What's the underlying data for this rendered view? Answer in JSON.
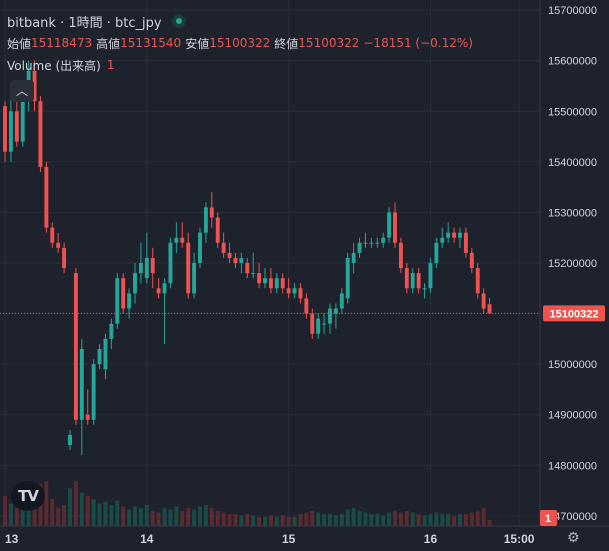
{
  "legend": {
    "title": "bitbank · 1時間 · btc_jpy",
    "open_label": "始値",
    "open": "15118473",
    "high_label": "高値",
    "high": "15131540",
    "low_label": "安値",
    "low": "15100322",
    "close_label": "終値",
    "close": "15100322",
    "change": "−18151 (−0.12%)",
    "volume_label": "Volume (出来高)",
    "volume_value": "1",
    "collapse_icon": "chevron-up-icon"
  },
  "brand": {
    "logo": "TV"
  },
  "icons": {
    "settings": "gear-icon"
  },
  "colors": {
    "up": "#26a69a",
    "down": "#ef5350",
    "background": "#1e222d",
    "grid": "#2a2e39"
  },
  "chart_data": {
    "type": "candlestick",
    "price_axis": {
      "ticks": [
        "15700000",
        "15600000",
        "15500000",
        "15400000",
        "15300000",
        "15200000",
        "15100000",
        "15000000",
        "14900000",
        "14800000",
        "14700000"
      ],
      "range": [
        14680000,
        15720000
      ],
      "last_price_label": "15100322",
      "last_price": 15100322,
      "volume_label": "1"
    },
    "time_axis": {
      "ticks": [
        {
          "label": "13",
          "index": 0
        },
        {
          "label": "14",
          "index": 24
        },
        {
          "label": "15",
          "index": 48
        },
        {
          "label": "16",
          "index": 72
        },
        {
          "label": "15:00",
          "index": 87
        }
      ],
      "range": [
        0,
        88
      ]
    },
    "grid": true,
    "candles": [
      [
        15510000,
        15520000,
        15400000,
        15420000,
        20
      ],
      [
        15420000,
        15530000,
        15400000,
        15500000,
        15
      ],
      [
        15500000,
        15530000,
        15430000,
        15440000,
        12
      ],
      [
        15440000,
        15560000,
        15430000,
        15530000,
        18
      ],
      [
        15530000,
        15600000,
        15500000,
        15580000,
        22
      ],
      [
        15580000,
        15600000,
        15500000,
        15520000,
        20
      ],
      [
        15520000,
        15530000,
        15380000,
        15390000,
        28
      ],
      [
        15390000,
        15400000,
        15260000,
        15270000,
        30
      ],
      [
        15270000,
        15280000,
        15230000,
        15240000,
        18
      ],
      [
        15240000,
        15260000,
        15220000,
        15230000,
        12
      ],
      [
        15230000,
        15240000,
        15180000,
        15190000,
        14
      ],
      [
        14840000,
        14870000,
        14830000,
        14860000,
        25
      ],
      [
        15180000,
        15190000,
        14880000,
        14890000,
        30
      ],
      [
        14890000,
        15050000,
        14820000,
        15030000,
        22
      ],
      [
        14900000,
        14950000,
        14880000,
        14890000,
        20
      ],
      [
        14890000,
        15010000,
        14880000,
        15000000,
        18
      ],
      [
        15000000,
        15040000,
        14990000,
        15030000,
        15
      ],
      [
        14990000,
        15060000,
        14970000,
        15050000,
        16
      ],
      [
        15050000,
        15090000,
        15030000,
        15080000,
        14
      ],
      [
        15080000,
        15180000,
        15070000,
        15170000,
        17
      ],
      [
        15170000,
        15180000,
        15100000,
        15110000,
        13
      ],
      [
        15110000,
        15150000,
        15090000,
        15140000,
        11
      ],
      [
        15140000,
        15200000,
        15120000,
        15180000,
        13
      ],
      [
        15180000,
        15240000,
        15160000,
        15200000,
        12
      ],
      [
        15170000,
        15260000,
        15160000,
        15210000,
        14
      ],
      [
        15210000,
        15230000,
        15150000,
        15180000,
        10
      ],
      [
        15150000,
        15170000,
        15130000,
        15140000,
        9
      ],
      [
        15140000,
        15170000,
        15040000,
        15160000,
        12
      ],
      [
        15160000,
        15250000,
        15150000,
        15240000,
        11
      ],
      [
        15240000,
        15280000,
        15220000,
        15250000,
        13
      ],
      [
        15250000,
        15280000,
        15230000,
        15240000,
        10
      ],
      [
        15240000,
        15260000,
        15130000,
        15140000,
        12
      ],
      [
        15140000,
        15220000,
        15130000,
        15200000,
        11
      ],
      [
        15200000,
        15270000,
        15190000,
        15260000,
        13
      ],
      [
        15260000,
        15320000,
        15240000,
        15310000,
        14
      ],
      [
        15310000,
        15340000,
        15270000,
        15290000,
        12
      ],
      [
        15290000,
        15300000,
        15230000,
        15240000,
        10
      ],
      [
        15240000,
        15260000,
        15210000,
        15220000,
        9
      ],
      [
        15220000,
        15240000,
        15200000,
        15210000,
        8
      ],
      [
        15210000,
        15220000,
        15190000,
        15200000,
        8
      ],
      [
        15200000,
        15220000,
        15180000,
        15210000,
        7
      ],
      [
        15200000,
        15210000,
        15170000,
        15180000,
        8
      ],
      [
        15180000,
        15220000,
        15170000,
        15180000,
        7
      ],
      [
        15180000,
        15200000,
        15150000,
        15160000,
        6
      ],
      [
        15160000,
        15190000,
        15150000,
        15170000,
        6
      ],
      [
        15170000,
        15190000,
        15140000,
        15150000,
        7
      ],
      [
        15150000,
        15180000,
        15140000,
        15170000,
        6
      ],
      [
        15170000,
        15180000,
        15140000,
        15150000,
        7
      ],
      [
        15150000,
        15170000,
        15130000,
        15140000,
        6
      ],
      [
        15140000,
        15160000,
        15130000,
        15150000,
        6
      ],
      [
        15150000,
        15160000,
        15120000,
        15130000,
        8
      ],
      [
        15130000,
        15140000,
        15090000,
        15100000,
        9
      ],
      [
        15100000,
        15110000,
        15050000,
        15060000,
        10
      ],
      [
        15060000,
        15100000,
        15050000,
        15090000,
        9
      ],
      [
        15080000,
        15100000,
        15060000,
        15080000,
        8
      ],
      [
        15080000,
        15120000,
        15060000,
        15110000,
        8
      ],
      [
        15100000,
        15120000,
        15070000,
        15110000,
        7
      ],
      [
        15110000,
        15150000,
        15100000,
        15140000,
        8
      ],
      [
        15130000,
        15220000,
        15120000,
        15210000,
        11
      ],
      [
        15200000,
        15240000,
        15180000,
        15220000,
        12
      ],
      [
        15220000,
        15250000,
        15210000,
        15240000,
        10
      ],
      [
        15240000,
        15260000,
        15230000,
        15240000,
        9
      ],
      [
        15240000,
        15250000,
        15230000,
        15240000,
        8
      ],
      [
        15240000,
        15250000,
        15230000,
        15240000,
        8
      ],
      [
        15240000,
        15260000,
        15230000,
        15250000,
        7
      ],
      [
        15250000,
        15310000,
        15240000,
        15300000,
        9
      ],
      [
        15300000,
        15320000,
        15230000,
        15240000,
        10
      ],
      [
        15240000,
        15250000,
        15180000,
        15190000,
        9
      ],
      [
        15190000,
        15200000,
        15140000,
        15150000,
        10
      ],
      [
        15150000,
        15190000,
        15140000,
        15180000,
        9
      ],
      [
        15180000,
        15190000,
        15140000,
        15150000,
        8
      ],
      [
        15150000,
        15160000,
        15130000,
        15150000,
        7
      ],
      [
        15150000,
        15210000,
        15140000,
        15200000,
        8
      ],
      [
        15200000,
        15250000,
        15190000,
        15240000,
        9
      ],
      [
        15240000,
        15270000,
        15230000,
        15250000,
        8
      ],
      [
        15250000,
        15280000,
        15240000,
        15260000,
        8
      ],
      [
        15260000,
        15270000,
        15240000,
        15250000,
        7
      ],
      [
        15250000,
        15270000,
        15230000,
        15260000,
        8
      ],
      [
        15260000,
        15270000,
        15210000,
        15220000,
        8
      ],
      [
        15220000,
        15230000,
        15180000,
        15190000,
        9
      ],
      [
        15190000,
        15200000,
        15130000,
        15140000,
        10
      ],
      [
        15140000,
        15150000,
        15100000,
        15110000,
        12
      ],
      [
        15118473,
        15131540,
        15100322,
        15100322,
        4
      ]
    ]
  }
}
